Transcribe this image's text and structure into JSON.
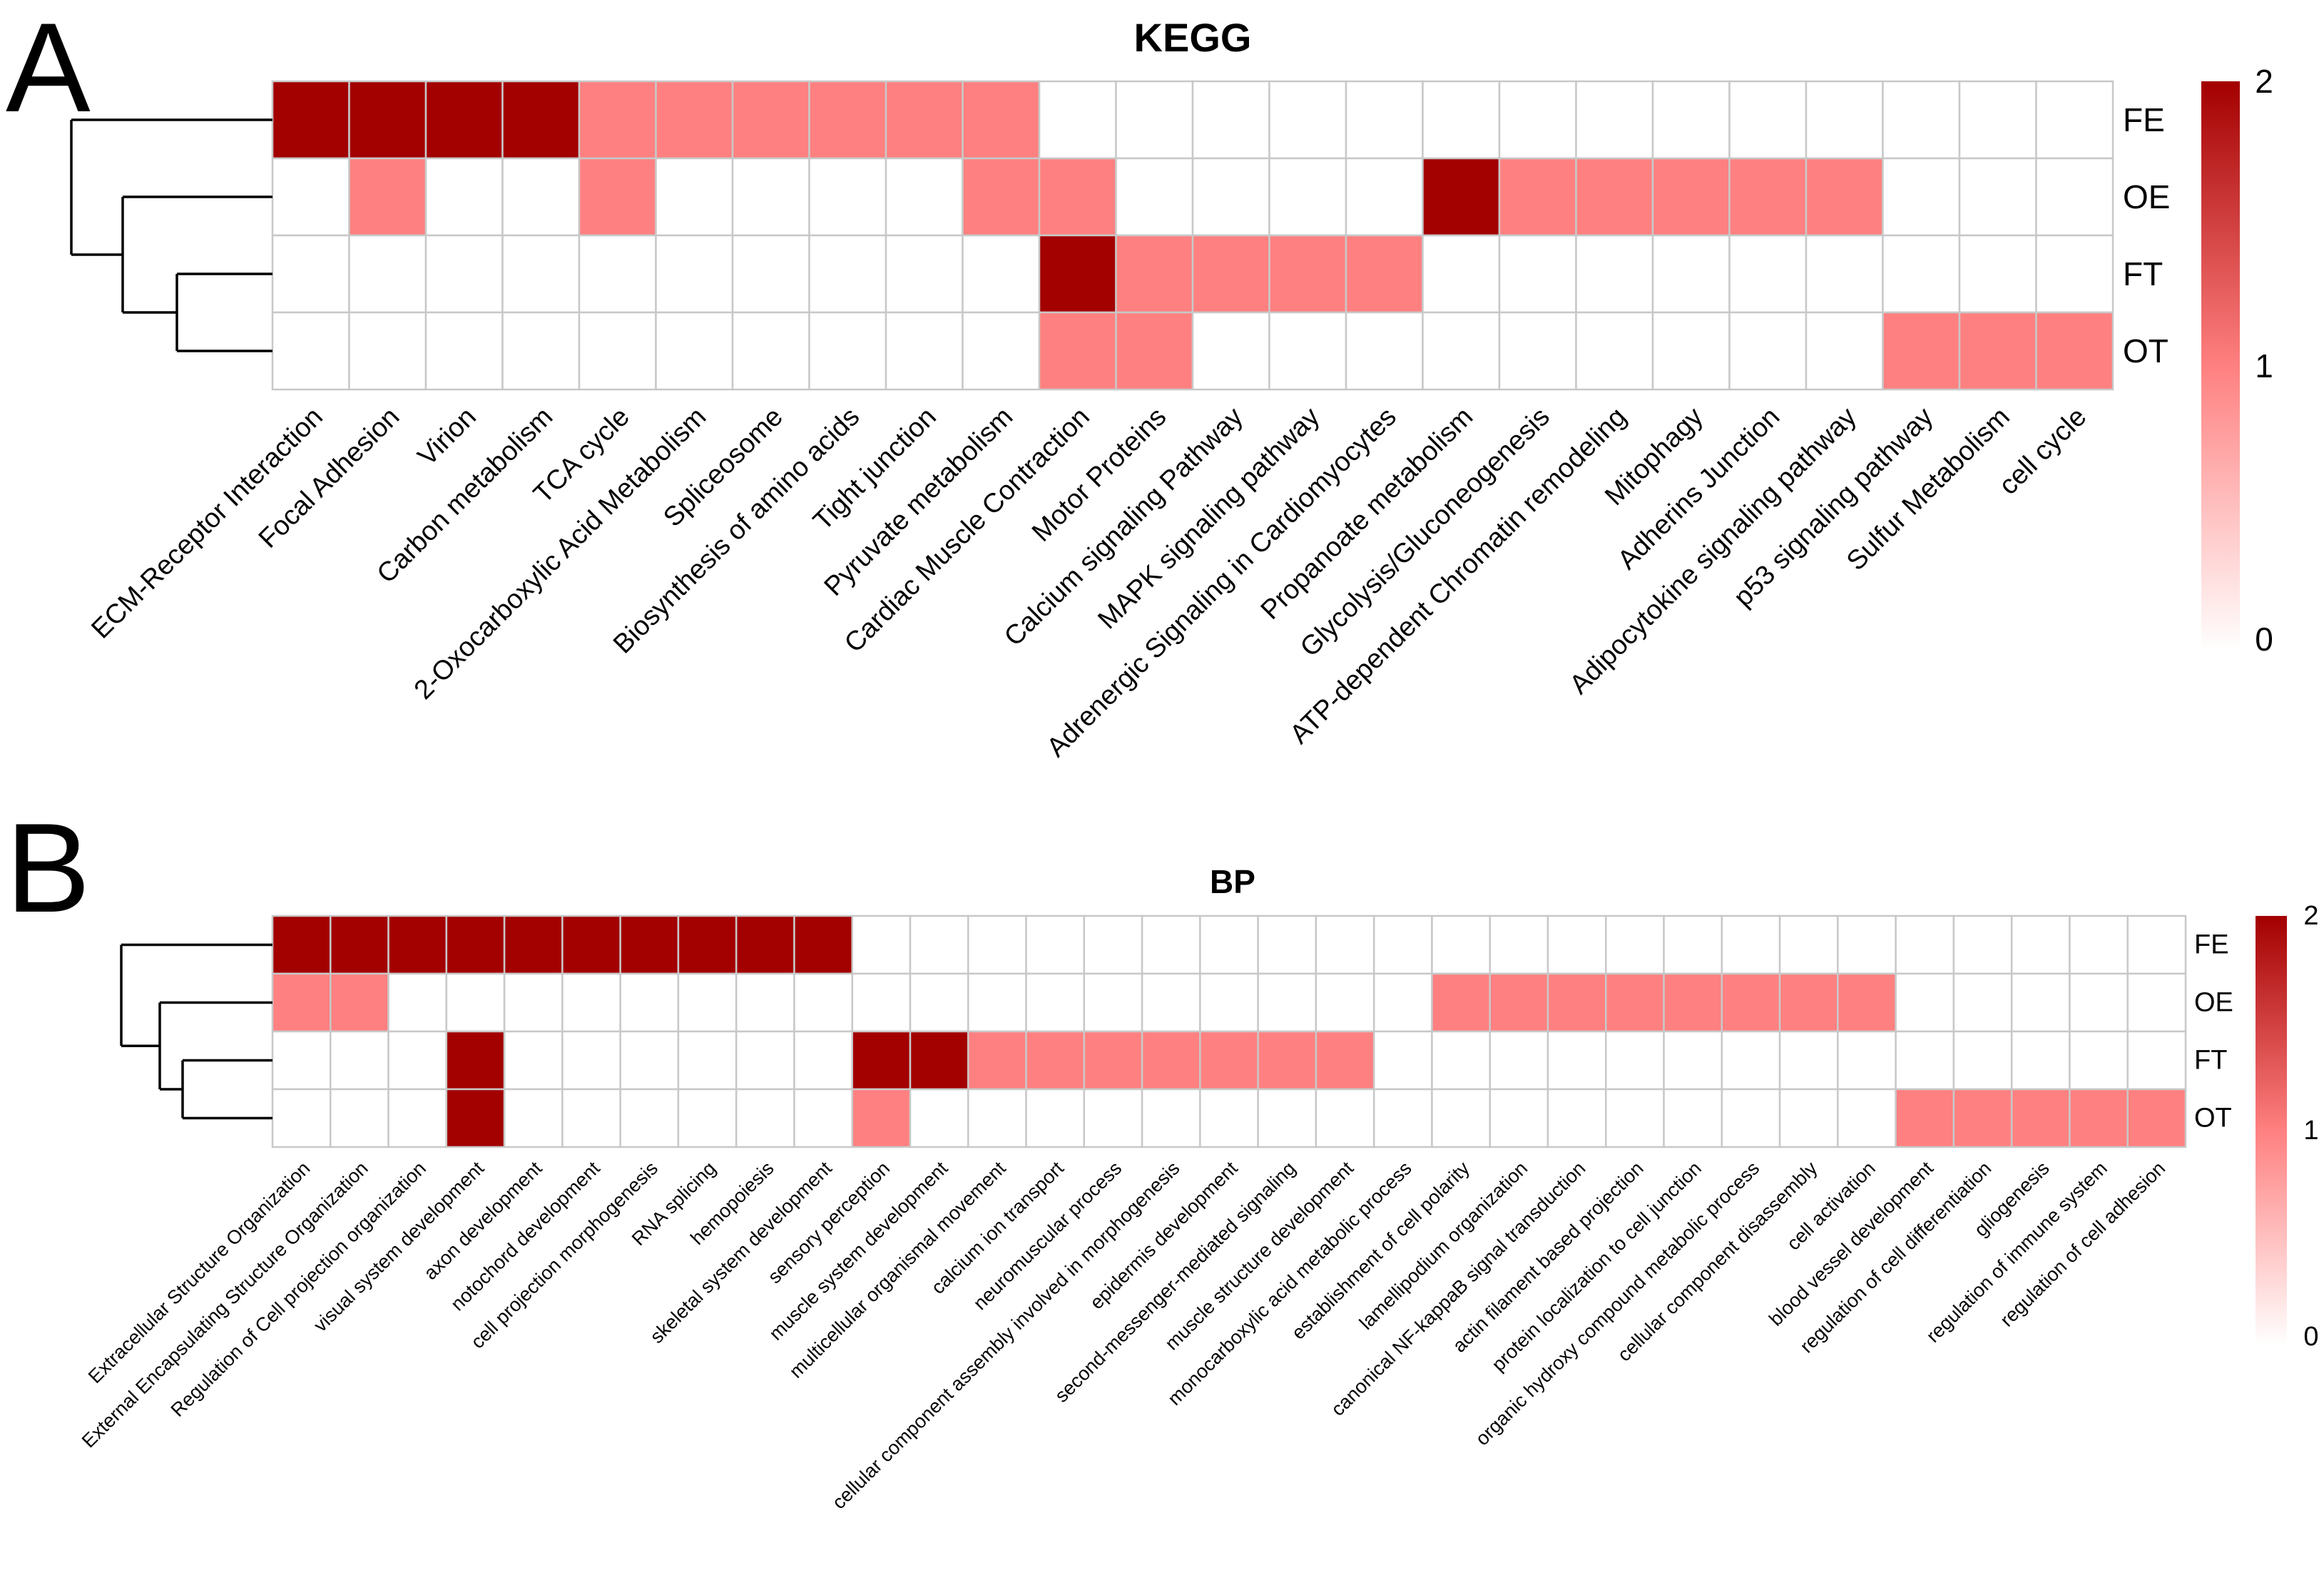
{
  "panel_labels": [
    "A",
    "B"
  ],
  "colors": {
    "high": "#a30000",
    "mid": "#ff8080",
    "low": "#ffffff",
    "grid": "#c8c8c8"
  },
  "chart_data": [
    {
      "type": "heatmap",
      "title": "KEGG",
      "rows": [
        "FE",
        "OE",
        "FT",
        "OT"
      ],
      "columns": [
        "ECM-Receptor Interaction",
        "Focal Adhesion",
        "Virion",
        "Carbon metabolism",
        "TCA cycle",
        "2-Oxocarboxylic Acid Metabolism",
        "Spliceosome",
        "Biosynthesis of amino acids",
        "Tight junction",
        "Pyruvate metabolism",
        "Cardiac Muscle Contraction",
        "Motor Proteins",
        "Calcium signaling Pathway",
        "MAPK signaling pathway",
        "Adrenergic Signaling in Cardiomyocytes",
        "Propanoate metabolism",
        "Glycolysis/Gluconeogenesis",
        "ATP-dependent Chromatin remodeling",
        "Mitophagy",
        "Adherins Junction",
        "Adipocytokine signaling pathway",
        "p53 signaling pathway",
        "Sulfur Metabolism",
        "cell cycle"
      ],
      "values": [
        [
          2,
          2,
          2,
          2,
          1,
          1,
          1,
          1,
          1,
          1,
          0,
          0,
          0,
          0,
          0,
          0,
          0,
          0,
          0,
          0,
          0,
          0,
          0,
          0
        ],
        [
          0,
          1,
          0,
          0,
          1,
          0,
          0,
          0,
          0,
          1,
          1,
          0,
          0,
          0,
          0,
          2,
          1,
          1,
          1,
          1,
          1,
          0,
          0,
          0
        ],
        [
          0,
          0,
          0,
          0,
          0,
          0,
          0,
          0,
          0,
          0,
          2,
          1,
          1,
          1,
          1,
          0,
          0,
          0,
          0,
          0,
          0,
          0,
          0,
          0
        ],
        [
          0,
          0,
          0,
          0,
          0,
          0,
          0,
          0,
          0,
          0,
          1,
          1,
          0,
          0,
          0,
          0,
          0,
          0,
          0,
          0,
          0,
          1,
          1,
          1
        ]
      ],
      "colorbar": {
        "min": 0,
        "max": 2,
        "ticks": [
          "0",
          "1",
          "2"
        ]
      },
      "dendrogram": "((FE,(OE,(FT,OT))))"
    },
    {
      "type": "heatmap",
      "title": "BP",
      "rows": [
        "FE",
        "OE",
        "FT",
        "OT"
      ],
      "columns": [
        "Extracellular Structure Organization",
        "External Encapsulating Structure Organization",
        "Regulation of Cell projection organization",
        "visual system development",
        "axon development",
        "notochord development",
        "cell projection morphogenesis",
        "RNA splicing",
        "hemopoiesis",
        "skeletal system development",
        "sensory perception",
        "muscle system development",
        "multicellular organismal movement",
        "calcium ion transport",
        "neuromuscular process",
        "cellular component assembly involved in morphogenesis",
        "epidermis development",
        "second-messenger-mediated signaling",
        "muscle structure development",
        "monocarboxylic acid metabolic process",
        "establishment of cell polarity",
        "lamellipodium organization",
        "canonical NF-kappaB signal transduction",
        "actin filament based projection",
        "protein localization to cell junction",
        "organic hydroxy compound metabolic process",
        "cellular component disassembly",
        "cell activation",
        "blood vessel development",
        "regulation of cell differentiation",
        "gliogenesis",
        "regulation of immune system",
        "regulation of cell adhesion"
      ],
      "values": [
        [
          2,
          2,
          2,
          2,
          2,
          2,
          2,
          2,
          2,
          2,
          0,
          0,
          0,
          0,
          0,
          0,
          0,
          0,
          0,
          0,
          0,
          0,
          0,
          0,
          0,
          0,
          0,
          0,
          0,
          0,
          0,
          0,
          0
        ],
        [
          1,
          1,
          0,
          0,
          0,
          0,
          0,
          0,
          0,
          0,
          0,
          0,
          0,
          0,
          0,
          0,
          0,
          0,
          0,
          0,
          1,
          1,
          1,
          1,
          1,
          1,
          1,
          1,
          0,
          0,
          0,
          0,
          0
        ],
        [
          0,
          0,
          0,
          2,
          0,
          0,
          0,
          0,
          0,
          0,
          2,
          2,
          1,
          1,
          1,
          1,
          1,
          1,
          1,
          0,
          0,
          0,
          0,
          0,
          0,
          0,
          0,
          0,
          0,
          0,
          0,
          0,
          0
        ],
        [
          0,
          0,
          0,
          2,
          0,
          0,
          0,
          0,
          0,
          0,
          1,
          0,
          0,
          0,
          0,
          0,
          0,
          0,
          0,
          0,
          0,
          0,
          0,
          0,
          0,
          0,
          0,
          0,
          1,
          1,
          1,
          1,
          1
        ]
      ],
      "colorbar": {
        "min": 0,
        "max": 2,
        "ticks": [
          "0",
          "1",
          "2"
        ]
      },
      "dendrogram": "((FE,(OE,(FT,OT))))"
    }
  ]
}
